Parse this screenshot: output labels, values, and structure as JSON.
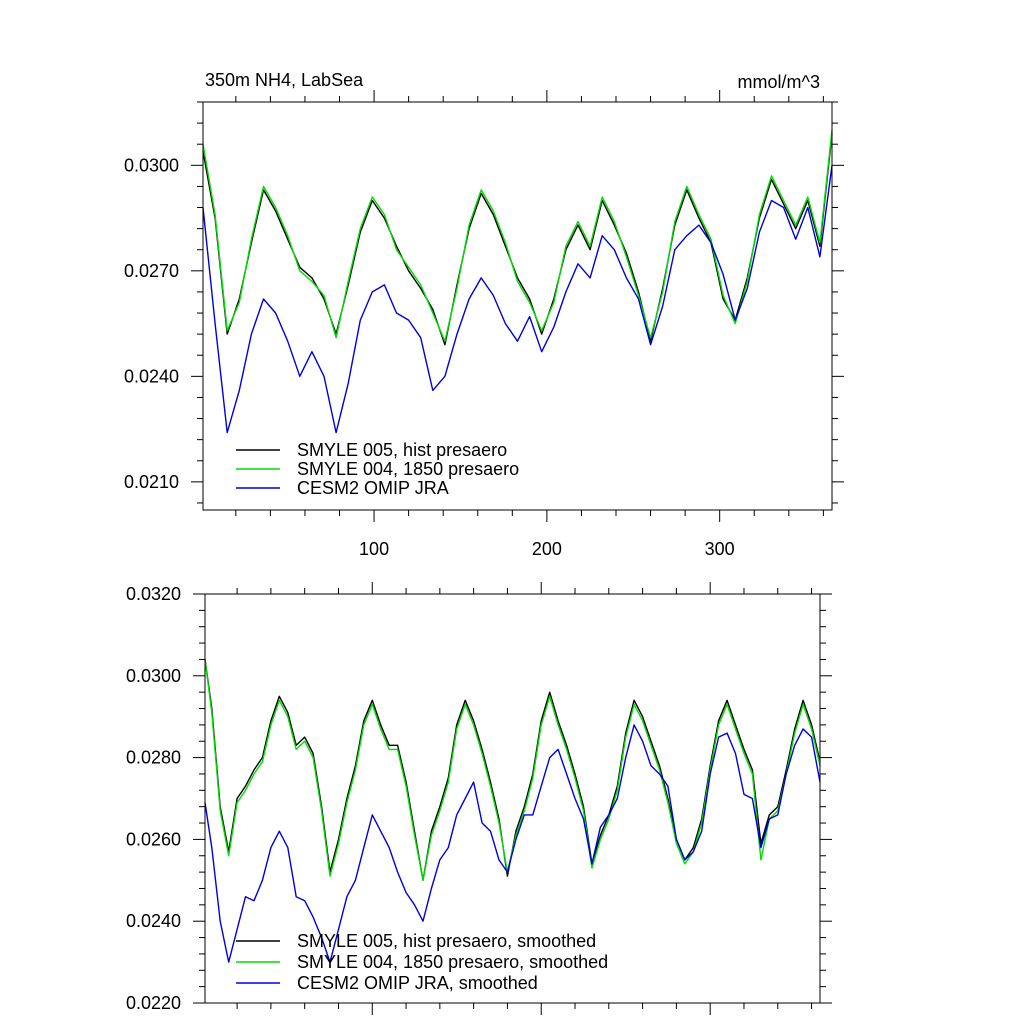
{
  "chart_data": [
    {
      "type": "line",
      "title": "350m NH4, LabSea",
      "units": "mmol/m^3",
      "xlim": [
        1,
        365
      ],
      "ylim": [
        0.0202,
        0.0318
      ],
      "x_ticks": [
        100,
        200,
        300
      ],
      "x_tick_labels": [
        "100",
        "200",
        "300"
      ],
      "y_ticks": [
        0.021,
        0.024,
        0.027,
        0.03
      ],
      "y_tick_labels": [
        "0.0210",
        "0.0240",
        "0.0270",
        "0.0300"
      ],
      "legend": "bottom-left",
      "series": [
        {
          "name": "SMYLE 005, hist presaero",
          "color": "#000000",
          "x": [
            1,
            8,
            15,
            22,
            29,
            36,
            43,
            50,
            57,
            64,
            71,
            78,
            85,
            92,
            99,
            106,
            113,
            120,
            127,
            134,
            141,
            148,
            155,
            162,
            169,
            176,
            183,
            190,
            197,
            204,
            211,
            218,
            225,
            232,
            239,
            246,
            253,
            260,
            267,
            274,
            281,
            288,
            295,
            302,
            309,
            316,
            323,
            330,
            337,
            344,
            351,
            358,
            365
          ],
          "values": [
            0.0304,
            0.0285,
            0.0252,
            0.0262,
            0.0278,
            0.0293,
            0.0287,
            0.0279,
            0.0271,
            0.0268,
            0.0262,
            0.0252,
            0.0266,
            0.0281,
            0.029,
            0.0285,
            0.0277,
            0.027,
            0.0265,
            0.0259,
            0.0249,
            0.0266,
            0.0282,
            0.0292,
            0.0286,
            0.0277,
            0.0268,
            0.0262,
            0.0252,
            0.0262,
            0.0276,
            0.0283,
            0.0276,
            0.029,
            0.0283,
            0.0275,
            0.0264,
            0.025,
            0.0265,
            0.0283,
            0.0293,
            0.0285,
            0.0278,
            0.0262,
            0.0256,
            0.0268,
            0.0285,
            0.0296,
            0.0289,
            0.0282,
            0.029,
            0.0277,
            0.0309
          ]
        },
        {
          "name": "SMYLE 004, 1850 presaero",
          "color": "#00dd00",
          "x": [
            1,
            8,
            15,
            22,
            29,
            36,
            43,
            50,
            57,
            64,
            71,
            78,
            85,
            92,
            99,
            106,
            113,
            120,
            127,
            134,
            141,
            148,
            155,
            162,
            169,
            176,
            183,
            190,
            197,
            204,
            211,
            218,
            225,
            232,
            239,
            246,
            253,
            260,
            267,
            274,
            281,
            288,
            295,
            302,
            309,
            316,
            323,
            330,
            337,
            344,
            351,
            358,
            365
          ],
          "values": [
            0.0306,
            0.0286,
            0.0253,
            0.0261,
            0.0279,
            0.0294,
            0.0288,
            0.028,
            0.027,
            0.0267,
            0.0263,
            0.0251,
            0.0267,
            0.0282,
            0.0291,
            0.0286,
            0.0276,
            0.0271,
            0.0266,
            0.0258,
            0.025,
            0.0265,
            0.0283,
            0.0293,
            0.0287,
            0.0278,
            0.0267,
            0.0261,
            0.0253,
            0.0261,
            0.0277,
            0.0284,
            0.0277,
            0.0291,
            0.0284,
            0.0274,
            0.0263,
            0.0251,
            0.0264,
            0.0284,
            0.0294,
            0.0286,
            0.0279,
            0.0263,
            0.0255,
            0.0267,
            0.0286,
            0.0297,
            0.029,
            0.0283,
            0.0291,
            0.0278,
            0.031
          ]
        },
        {
          "name": "CESM2 OMIP JRA",
          "color": "#0000dd",
          "x": [
            1,
            8,
            15,
            22,
            29,
            36,
            43,
            50,
            57,
            64,
            71,
            78,
            85,
            92,
            99,
            106,
            113,
            120,
            127,
            134,
            141,
            148,
            155,
            162,
            169,
            176,
            183,
            190,
            197,
            204,
            211,
            218,
            225,
            232,
            239,
            246,
            253,
            260,
            267,
            274,
            281,
            288,
            295,
            302,
            309,
            316,
            323,
            330,
            337,
            344,
            351,
            358,
            365
          ],
          "values": [
            0.0288,
            0.0255,
            0.0224,
            0.0236,
            0.0252,
            0.0262,
            0.0258,
            0.025,
            0.024,
            0.0247,
            0.024,
            0.0224,
            0.0238,
            0.0256,
            0.0264,
            0.0266,
            0.0258,
            0.0256,
            0.0251,
            0.0236,
            0.024,
            0.0252,
            0.0262,
            0.0268,
            0.0263,
            0.0255,
            0.025,
            0.0257,
            0.0247,
            0.0254,
            0.0264,
            0.0272,
            0.0268,
            0.028,
            0.0276,
            0.0268,
            0.0262,
            0.0249,
            0.026,
            0.0276,
            0.028,
            0.0283,
            0.0278,
            0.0269,
            0.0256,
            0.0265,
            0.0281,
            0.029,
            0.0288,
            0.0279,
            0.0288,
            0.0274,
            0.03
          ]
        }
      ]
    },
    {
      "type": "line",
      "title": "",
      "xlim": [
        1,
        365
      ],
      "ylim": [
        0.022,
        0.032
      ],
      "x_ticks": [
        100,
        200,
        300
      ],
      "x_tick_labels": [],
      "y_ticks": [
        0.022,
        0.024,
        0.026,
        0.028,
        0.03,
        0.032
      ],
      "y_tick_labels": [
        "0.0220",
        "0.0240",
        "0.0260",
        "0.0280",
        "0.0300",
        "0.0320"
      ],
      "legend": "bottom-left",
      "series": [
        {
          "name": "SMYLE 005, hist presaero, smoothed",
          "color": "#000000",
          "x": [
            1,
            5,
            10,
            15,
            20,
            25,
            30,
            35,
            40,
            45,
            50,
            55,
            60,
            65,
            70,
            75,
            80,
            85,
            90,
            95,
            100,
            105,
            110,
            115,
            120,
            125,
            130,
            135,
            140,
            145,
            150,
            155,
            160,
            165,
            170,
            175,
            180,
            185,
            190,
            195,
            200,
            205,
            210,
            215,
            220,
            225,
            230,
            235,
            240,
            245,
            250,
            255,
            260,
            265,
            270,
            275,
            280,
            285,
            290,
            295,
            300,
            305,
            310,
            315,
            320,
            325,
            330,
            335,
            340,
            345,
            350,
            355,
            360,
            365
          ],
          "values": [
            0.0304,
            0.0292,
            0.0268,
            0.0257,
            0.027,
            0.0273,
            0.0277,
            0.028,
            0.0289,
            0.0295,
            0.0291,
            0.0283,
            0.0285,
            0.0281,
            0.0268,
            0.0252,
            0.026,
            0.027,
            0.0278,
            0.0289,
            0.0294,
            0.0288,
            0.0283,
            0.0283,
            0.0274,
            0.0262,
            0.025,
            0.0262,
            0.0268,
            0.0275,
            0.0288,
            0.0294,
            0.0289,
            0.0282,
            0.0274,
            0.0265,
            0.0251,
            0.0262,
            0.0268,
            0.0276,
            0.0289,
            0.0296,
            0.0289,
            0.0283,
            0.0276,
            0.0268,
            0.0254,
            0.0261,
            0.0266,
            0.0273,
            0.0286,
            0.0294,
            0.029,
            0.0284,
            0.0278,
            0.027,
            0.026,
            0.0255,
            0.0258,
            0.0265,
            0.0278,
            0.0289,
            0.0294,
            0.0288,
            0.0282,
            0.0277,
            0.0259,
            0.0266,
            0.0268,
            0.0277,
            0.0287,
            0.0294,
            0.0288,
            0.0279
          ]
        },
        {
          "name": "SMYLE 004, 1850 presaero, smoothed",
          "color": "#00dd00",
          "x": [
            1,
            5,
            10,
            15,
            20,
            25,
            30,
            35,
            40,
            45,
            50,
            55,
            60,
            65,
            70,
            75,
            80,
            85,
            90,
            95,
            100,
            105,
            110,
            115,
            120,
            125,
            130,
            135,
            140,
            145,
            150,
            155,
            160,
            165,
            170,
            175,
            180,
            185,
            190,
            195,
            200,
            205,
            210,
            215,
            220,
            225,
            230,
            235,
            240,
            245,
            250,
            255,
            260,
            265,
            270,
            275,
            280,
            285,
            290,
            295,
            300,
            305,
            310,
            315,
            320,
            325,
            330,
            335,
            340,
            345,
            350,
            355,
            360,
            365
          ],
          "values": [
            0.0304,
            0.0291,
            0.0267,
            0.0256,
            0.0269,
            0.0272,
            0.0276,
            0.0279,
            0.0288,
            0.0294,
            0.029,
            0.0282,
            0.0284,
            0.028,
            0.0267,
            0.0251,
            0.0259,
            0.0269,
            0.0277,
            0.0288,
            0.0293,
            0.0287,
            0.0282,
            0.0282,
            0.0273,
            0.0261,
            0.025,
            0.0261,
            0.0267,
            0.0274,
            0.0287,
            0.0293,
            0.0288,
            0.0281,
            0.0273,
            0.0264,
            0.0252,
            0.0261,
            0.0267,
            0.0275,
            0.0288,
            0.0295,
            0.0288,
            0.0282,
            0.0275,
            0.0267,
            0.0253,
            0.026,
            0.0265,
            0.0272,
            0.0285,
            0.0293,
            0.0289,
            0.0283,
            0.0277,
            0.0269,
            0.0259,
            0.0254,
            0.0257,
            0.0264,
            0.0277,
            0.0288,
            0.0293,
            0.0287,
            0.0281,
            0.0276,
            0.0255,
            0.0265,
            0.0267,
            0.0276,
            0.0286,
            0.0293,
            0.0287,
            0.0278
          ]
        },
        {
          "name": "CESM2 OMIP JRA, smoothed",
          "color": "#0000dd",
          "x": [
            1,
            5,
            10,
            15,
            20,
            25,
            30,
            35,
            40,
            45,
            50,
            55,
            60,
            65,
            70,
            75,
            80,
            85,
            90,
            95,
            100,
            105,
            110,
            115,
            120,
            125,
            130,
            135,
            140,
            145,
            150,
            155,
            160,
            165,
            170,
            175,
            180,
            185,
            190,
            195,
            200,
            205,
            210,
            215,
            220,
            225,
            230,
            235,
            240,
            245,
            250,
            255,
            260,
            265,
            270,
            275,
            280,
            285,
            290,
            295,
            300,
            305,
            310,
            315,
            320,
            325,
            330,
            335,
            340,
            345,
            350,
            355,
            360,
            365
          ],
          "values": [
            0.0269,
            0.0258,
            0.024,
            0.023,
            0.0238,
            0.0246,
            0.0245,
            0.025,
            0.0258,
            0.0262,
            0.0258,
            0.0246,
            0.0245,
            0.0241,
            0.0236,
            0.023,
            0.0238,
            0.0246,
            0.025,
            0.0258,
            0.0266,
            0.0262,
            0.0258,
            0.0252,
            0.0247,
            0.0244,
            0.024,
            0.0248,
            0.0255,
            0.0258,
            0.0266,
            0.027,
            0.0274,
            0.0264,
            0.0262,
            0.0255,
            0.0252,
            0.026,
            0.0266,
            0.0266,
            0.0273,
            0.028,
            0.0282,
            0.0276,
            0.027,
            0.0265,
            0.0254,
            0.0263,
            0.0266,
            0.027,
            0.028,
            0.0288,
            0.0284,
            0.0278,
            0.0276,
            0.0273,
            0.026,
            0.0255,
            0.0257,
            0.0262,
            0.0276,
            0.0285,
            0.0286,
            0.0281,
            0.0271,
            0.027,
            0.0258,
            0.0265,
            0.0266,
            0.0276,
            0.0283,
            0.0287,
            0.0285,
            0.0274
          ]
        }
      ]
    }
  ]
}
